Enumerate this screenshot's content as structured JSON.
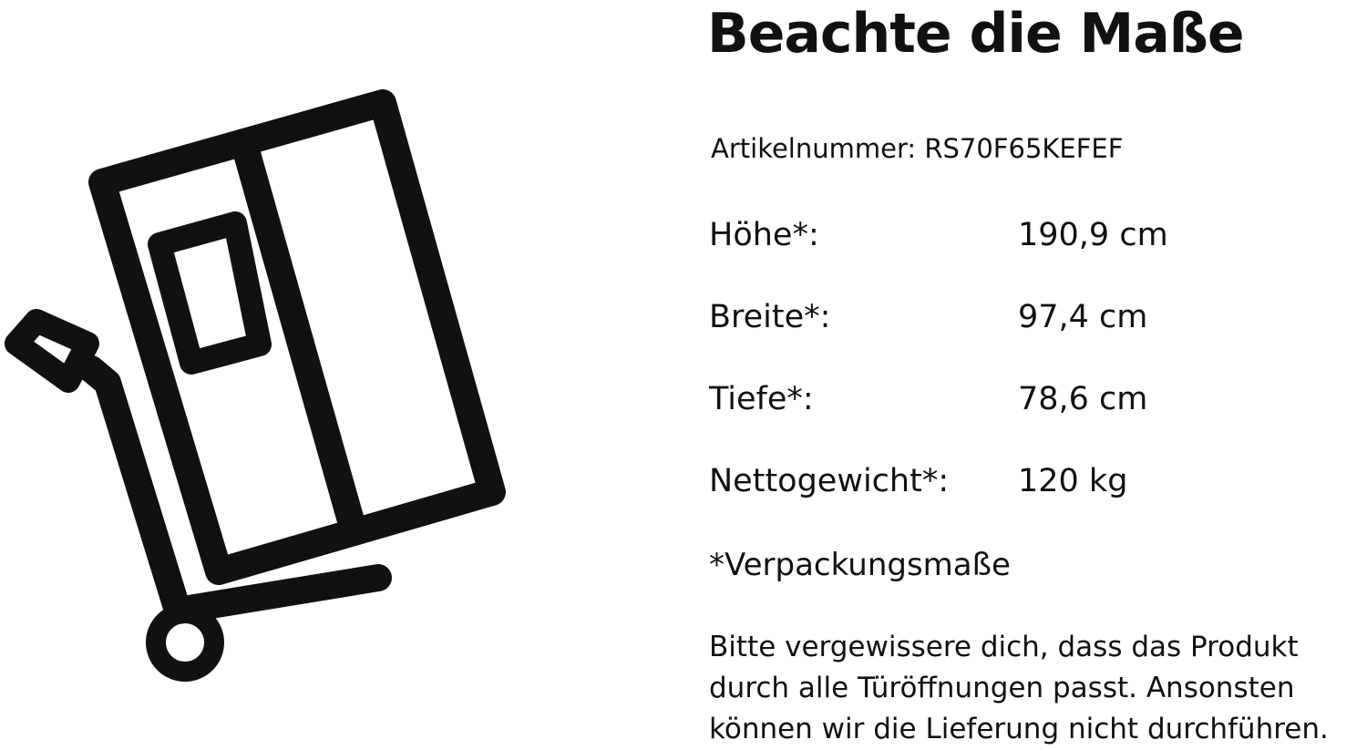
{
  "title": "Beachte die Maße",
  "article_number": "Artikelnummer: RS70F65KEFEF",
  "dimensions": [
    {
      "label": "Höhe*:",
      "value": "190,9 cm"
    },
    {
      "label": "Breite*:",
      "value": "97,4 cm"
    },
    {
      "label": "Tiefe*:",
      "value": "78,6 cm"
    },
    {
      "label": "Nettogewicht*:",
      "value": "120 kg"
    }
  ],
  "footnote": "*Verpackungsmaße",
  "notice": "Bitte vergewissere dich, dass das Produkt durch alle Türöffnungen passt. Ansonsten können wir die Lieferung nicht durchführen.",
  "icon": "fridge-on-hand-truck-icon"
}
